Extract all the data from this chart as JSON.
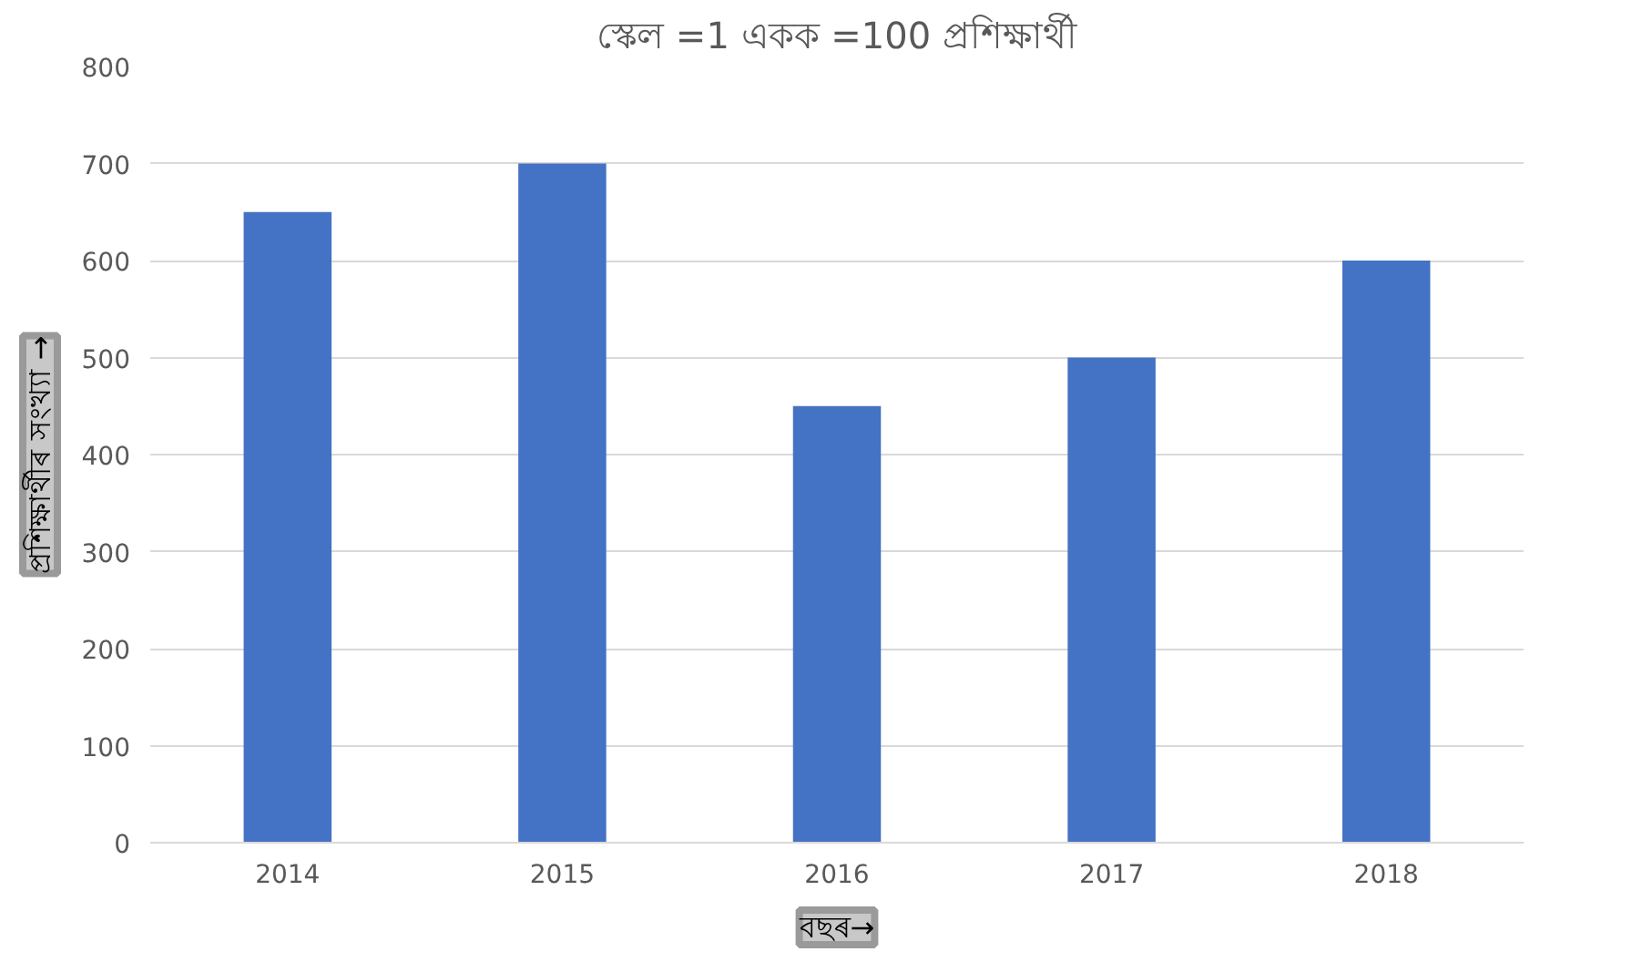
{
  "chart_data": {
    "type": "bar",
    "title": "স্কেল =1 একক =100 প্ৰশিক্ষাৰ্থী",
    "xlabel": "বছৰ→",
    "ylabel": "প্ৰশিক্ষাৰ্থীৰ সংখ্যা →",
    "categories": [
      "2014",
      "2015",
      "2016",
      "2017",
      "2018"
    ],
    "values": [
      650,
      700,
      450,
      500,
      600
    ],
    "color": "#4472c4",
    "ylim": [
      0,
      800
    ],
    "yticks": [
      0,
      100,
      200,
      300,
      400,
      500,
      600,
      700,
      800
    ],
    "grid": "y"
  }
}
